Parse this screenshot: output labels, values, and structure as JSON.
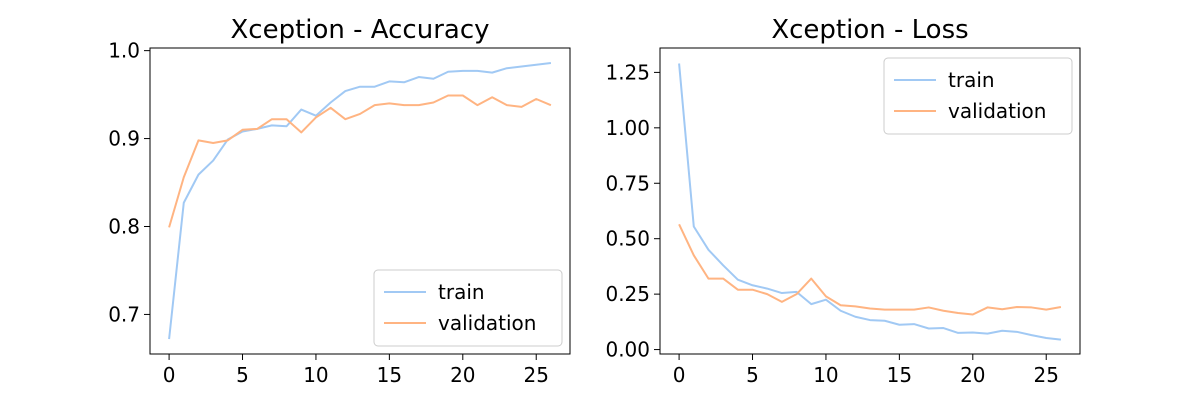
{
  "colors": {
    "train": "#a1c9f4",
    "validation": "#ffb482"
  },
  "chart_data": [
    {
      "type": "line",
      "title": "Xception - Accuracy",
      "xlabel": "",
      "ylabel": "",
      "xlim": [
        -1.3,
        27.3
      ],
      "ylim": [
        0.655,
        1.003
      ],
      "xticks": [
        0,
        5,
        10,
        15,
        20,
        25
      ],
      "xtick_labels": [
        "0",
        "5",
        "10",
        "15",
        "20",
        "25"
      ],
      "yticks": [
        0.7,
        0.8,
        0.9,
        1.0
      ],
      "ytick_labels": [
        "0.7",
        "0.8",
        "0.9",
        "1.0"
      ],
      "legend": "lower-right",
      "grid": false,
      "x": [
        0,
        1,
        2,
        3,
        4,
        5,
        6,
        7,
        8,
        9,
        10,
        11,
        12,
        13,
        14,
        15,
        16,
        17,
        18,
        19,
        20,
        21,
        22,
        23,
        24,
        25,
        26
      ],
      "series": [
        {
          "name": "train",
          "color": "#a1c9f4",
          "values": [
            0.672,
            0.827,
            0.859,
            0.875,
            0.899,
            0.908,
            0.911,
            0.915,
            0.914,
            0.933,
            0.926,
            0.941,
            0.954,
            0.959,
            0.959,
            0.965,
            0.964,
            0.97,
            0.968,
            0.976,
            0.977,
            0.977,
            0.975,
            0.98,
            0.982,
            0.984,
            0.986
          ]
        },
        {
          "name": "validation",
          "color": "#ffb482",
          "values": [
            0.799,
            0.856,
            0.898,
            0.895,
            0.898,
            0.91,
            0.911,
            0.922,
            0.922,
            0.907,
            0.924,
            0.935,
            0.922,
            0.928,
            0.938,
            0.94,
            0.938,
            0.938,
            0.941,
            0.949,
            0.949,
            0.938,
            0.947,
            0.938,
            0.936,
            0.945,
            0.938
          ]
        }
      ]
    },
    {
      "type": "line",
      "title": "Xception - Loss",
      "xlabel": "",
      "ylabel": "",
      "xlim": [
        -1.3,
        27.3
      ],
      "ylim": [
        -0.02,
        1.36
      ],
      "xticks": [
        0,
        5,
        10,
        15,
        20,
        25
      ],
      "xtick_labels": [
        "0",
        "5",
        "10",
        "15",
        "20",
        "25"
      ],
      "yticks": [
        0.0,
        0.25,
        0.5,
        0.75,
        1.0,
        1.25
      ],
      "ytick_labels": [
        "0.00",
        "0.25",
        "0.50",
        "0.75",
        "1.00",
        "1.25"
      ],
      "legend": "upper-right",
      "grid": false,
      "x": [
        0,
        1,
        2,
        3,
        4,
        5,
        6,
        7,
        8,
        9,
        10,
        11,
        12,
        13,
        14,
        15,
        16,
        17,
        18,
        19,
        20,
        21,
        22,
        23,
        24,
        25,
        26
      ],
      "series": [
        {
          "name": "train",
          "color": "#a1c9f4",
          "values": [
            1.29,
            0.555,
            0.45,
            0.38,
            0.315,
            0.29,
            0.275,
            0.255,
            0.26,
            0.205,
            0.225,
            0.175,
            0.148,
            0.133,
            0.13,
            0.112,
            0.115,
            0.095,
            0.097,
            0.075,
            0.077,
            0.072,
            0.085,
            0.08,
            0.065,
            0.052,
            0.045
          ]
        },
        {
          "name": "validation",
          "color": "#ffb482",
          "values": [
            0.565,
            0.425,
            0.32,
            0.32,
            0.27,
            0.27,
            0.25,
            0.215,
            0.25,
            0.32,
            0.24,
            0.2,
            0.195,
            0.185,
            0.18,
            0.18,
            0.18,
            0.19,
            0.175,
            0.165,
            0.158,
            0.19,
            0.182,
            0.192,
            0.19,
            0.18,
            0.192
          ]
        }
      ]
    }
  ]
}
